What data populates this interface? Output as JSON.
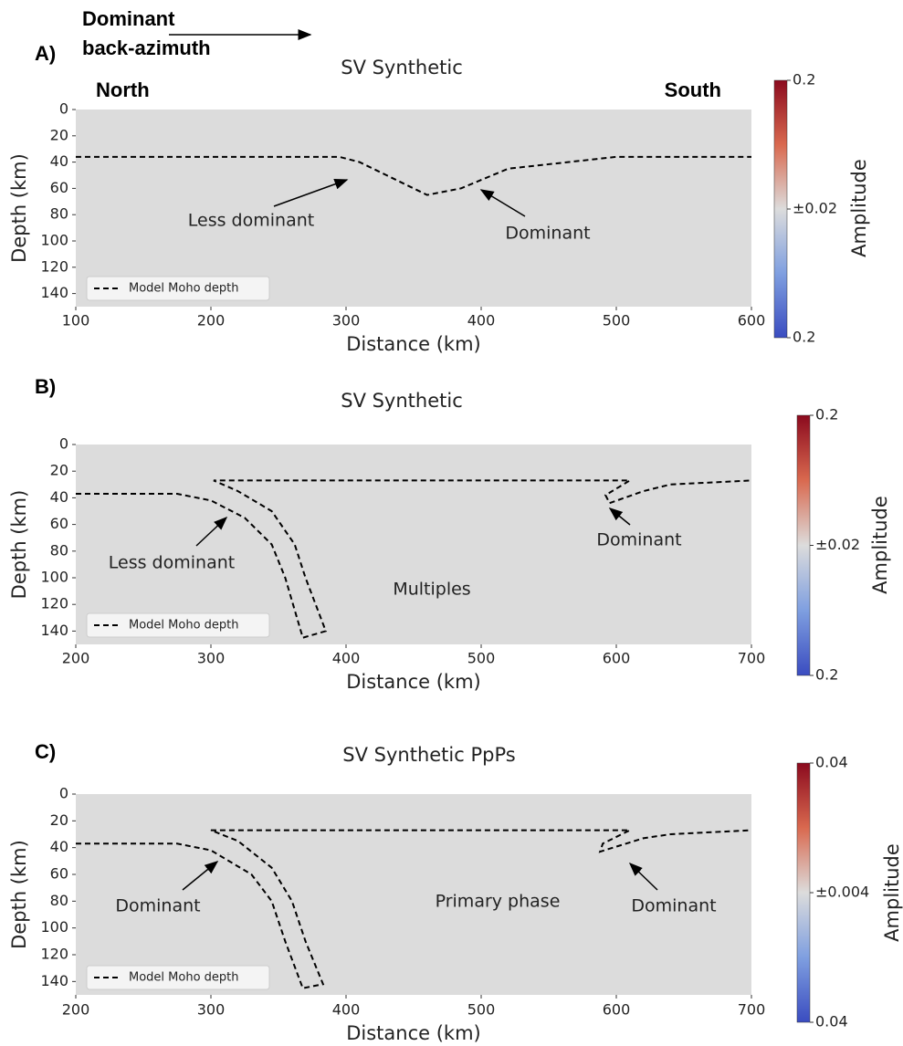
{
  "header": {
    "lines": [
      "Dominant",
      "back-azimuth"
    ],
    "left": "North",
    "right": "South"
  },
  "chart_data": [
    {
      "type": "line",
      "panel_label": "A)",
      "title": "SV Synthetic",
      "xlabel": "Distance (km)",
      "ylabel": "Depth (km)",
      "xlim": [
        100,
        600
      ],
      "ylim": [
        150,
        0
      ],
      "xticks": [
        100,
        200,
        300,
        400,
        500,
        600
      ],
      "yticks": [
        0,
        20,
        40,
        60,
        80,
        100,
        120,
        140
      ],
      "series": [
        {
          "name": "Model Moho depth",
          "color": "#000000",
          "x": [
            100,
            295,
            310,
            330,
            360,
            385,
            420,
            500,
            600
          ],
          "values": [
            36,
            36,
            40,
            50,
            65,
            60,
            45,
            36,
            36
          ]
        }
      ],
      "annotations": [
        "Less dominant",
        "Dominant"
      ],
      "colorbar": {
        "label": "Amplitude",
        "tick_labels": [
          "0.2",
          "±0.02",
          "0.2"
        ]
      }
    },
    {
      "type": "line",
      "panel_label": "B)",
      "title": "SV Synthetic",
      "xlabel": "Distance (km)",
      "ylabel": "Depth (km)",
      "xlim": [
        200,
        700
      ],
      "ylim": [
        150,
        0
      ],
      "xticks": [
        200,
        300,
        400,
        500,
        600,
        700
      ],
      "yticks": [
        0,
        20,
        40,
        60,
        80,
        100,
        120,
        140
      ],
      "series": [
        {
          "name": "Model Moho depth",
          "color": "#000000",
          "x": [
            200,
            275,
            300,
            325,
            345,
            355,
            368,
            385,
            370,
            362,
            345,
            320,
            302,
            610,
            592,
            595,
            620,
            640,
            700
          ],
          "values": [
            37,
            37,
            42,
            55,
            75,
            100,
            145,
            140,
            100,
            75,
            50,
            35,
            27,
            27,
            38,
            44,
            35,
            30,
            27
          ]
        }
      ],
      "annotations": [
        "Less dominant",
        "Dominant",
        "Multiples"
      ],
      "colorbar": {
        "label": "Amplitude",
        "tick_labels": [
          "0.2",
          "±0.02",
          "0.2"
        ]
      }
    },
    {
      "type": "line",
      "panel_label": "C)",
      "title": "SV Synthetic PpPs",
      "xlabel": "Distance (km)",
      "ylabel": "Depth (km)",
      "xlim": [
        200,
        700
      ],
      "ylim": [
        150,
        0
      ],
      "xticks": [
        200,
        300,
        400,
        500,
        600,
        700
      ],
      "yticks": [
        0,
        20,
        40,
        60,
        80,
        100,
        120,
        140
      ],
      "series": [
        {
          "name": "Model Moho depth",
          "color": "#000000",
          "x": [
            200,
            275,
            300,
            330,
            345,
            355,
            368,
            383,
            370,
            360,
            345,
            320,
            300,
            610,
            590,
            588,
            620,
            640,
            700
          ],
          "values": [
            37,
            37,
            42,
            60,
            80,
            110,
            145,
            142,
            110,
            80,
            55,
            35,
            27,
            27,
            37,
            43,
            33,
            30,
            27
          ]
        }
      ],
      "annotations": [
        "Dominant",
        "Primary phase",
        "Dominant"
      ],
      "colorbar": {
        "label": "Amplitude",
        "tick_labels": [
          "0.04",
          "±0.004",
          "0.04"
        ]
      }
    }
  ]
}
